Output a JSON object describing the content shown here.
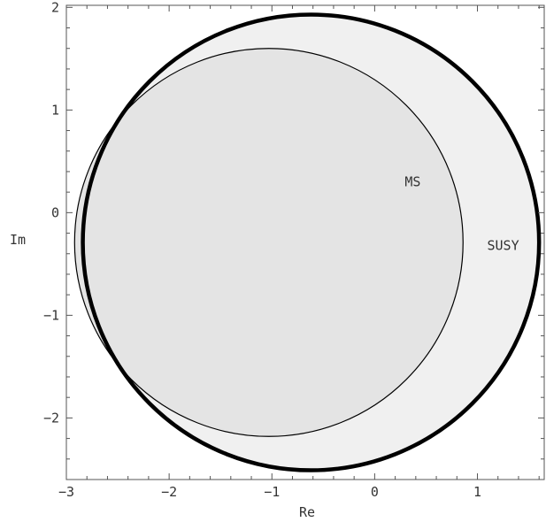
{
  "chart_data": {
    "type": "region",
    "title": "",
    "xlabel": "Re",
    "ylabel": "Im",
    "xlim": [
      -3,
      1.65
    ],
    "ylim": [
      -2.6,
      2.02
    ],
    "x_ticks": [
      {
        "value": -3,
        "label": "−3"
      },
      {
        "value": -2,
        "label": "−2"
      },
      {
        "value": -1,
        "label": "−1"
      },
      {
        "value": 0,
        "label": "0"
      },
      {
        "value": 1,
        "label": "1"
      }
    ],
    "y_ticks": [
      {
        "value": 2,
        "label": "2"
      },
      {
        "value": 1,
        "label": "1"
      },
      {
        "value": 0,
        "label": "0"
      },
      {
        "value": -1,
        "label": "−1"
      },
      {
        "value": -2,
        "label": "−2"
      }
    ],
    "grid": false,
    "regions": [
      {
        "name": "SUSY",
        "shape": "circle",
        "cx": -0.62,
        "cy": -0.29,
        "r": 2.22,
        "fill": "#f0f0f0",
        "stroke": "#000000",
        "stroke_style": "thick"
      },
      {
        "name": "MS",
        "shape": "circle",
        "cx": -1.03,
        "cy": -0.29,
        "r": 1.89,
        "fill": "#e4e4e4",
        "stroke": "#000000",
        "stroke_style": "thin"
      }
    ],
    "annotations": [
      {
        "text": "MS",
        "x": 0.37,
        "y": 0.3
      },
      {
        "text": "SUSY",
        "x": 1.25,
        "y": -0.32
      }
    ]
  }
}
